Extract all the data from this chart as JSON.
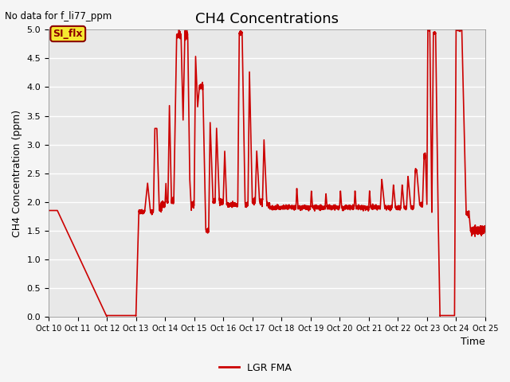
{
  "title": "CH4 Concentrations",
  "top_left_text": "No data for f_li77_ppm",
  "ylabel": "CH4 Concentration (ppm)",
  "xlabel": "Time",
  "ylim": [
    0.0,
    5.0
  ],
  "xlim": [
    10,
    25
  ],
  "xtick_labels": [
    "Oct 10",
    "Oct 11",
    "Oct 12",
    "Oct 13",
    "Oct 14",
    "Oct 15",
    "Oct 16",
    "Oct 17",
    "Oct 18",
    "Oct 19",
    "Oct 20",
    "Oct 21",
    "Oct 22",
    "Oct 23",
    "Oct 24",
    "Oct 25"
  ],
  "xtick_values": [
    10,
    11,
    12,
    13,
    14,
    15,
    16,
    17,
    18,
    19,
    20,
    21,
    22,
    23,
    24,
    25
  ],
  "ytick_values": [
    0.0,
    0.5,
    1.0,
    1.5,
    2.0,
    2.5,
    3.0,
    3.5,
    4.0,
    4.5,
    5.0
  ],
  "line_color": "#cc0000",
  "line_width": 1.2,
  "plot_bg": "#e8e8e8",
  "fig_bg": "#f5f5f5",
  "legend_label": "LGR FMA",
  "si_flx_label": "SI_flx",
  "title_fontsize": 13,
  "axis_label_fontsize": 9,
  "tick_fontsize": 8,
  "grid_color": "#ffffff",
  "grid_linewidth": 1.0
}
